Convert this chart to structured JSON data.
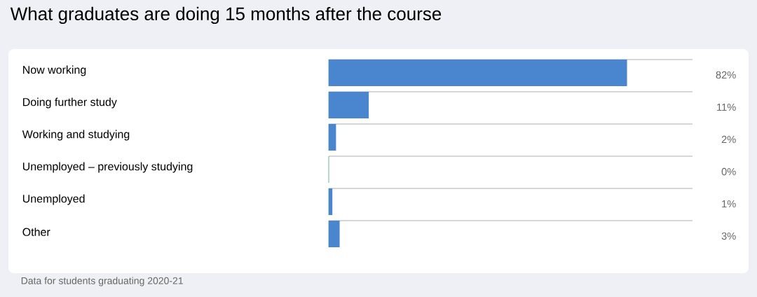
{
  "chart_data": {
    "type": "bar",
    "orientation": "horizontal",
    "title": "What graduates are doing 15 months after the course",
    "categories": [
      "Now working",
      "Doing further study",
      "Working and studying",
      "Unemployed – previously studying",
      "Unemployed",
      "Other"
    ],
    "values": [
      82,
      11,
      2,
      0,
      1,
      3
    ],
    "value_labels": [
      "82%",
      "11%",
      "2%",
      "0%",
      "1%",
      "3%"
    ],
    "color": "#4a86d0",
    "xlim": [
      0,
      100
    ],
    "grid": "y",
    "tick_labels": "y",
    "annotations": [
      "Data for students graduating 2020-21"
    ]
  }
}
